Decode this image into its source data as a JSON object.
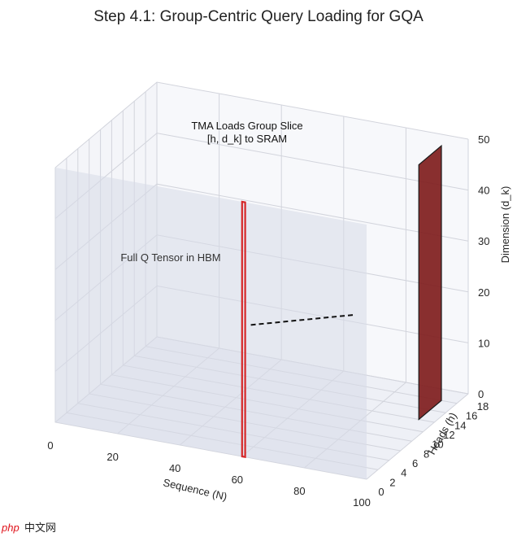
{
  "chart_data": {
    "type": "3d-surface",
    "title": "Step 4.1: Group-Centric Query Loading for GQA",
    "xlabel": "Sequence (N)",
    "ylabel": "Heads (h)",
    "zlabel": "Dimension (d_k)",
    "xlim": [
      0,
      100
    ],
    "ylim": [
      0,
      18
    ],
    "zlim": [
      0,
      50
    ],
    "xticks": [
      "0",
      "20",
      "40",
      "60",
      "80",
      "100"
    ],
    "yticks": [
      "0",
      "2",
      "4",
      "6",
      "8",
      "10",
      "12",
      "14",
      "16",
      "18"
    ],
    "zticks": [
      "0",
      "10",
      "20",
      "30",
      "40",
      "50"
    ],
    "full_tensor": {
      "x": [
        0,
        100
      ],
      "y": [
        0,
        0
      ],
      "z": [
        0,
        50
      ],
      "color": "#d7dae8",
      "label": "Full Q Tensor in HBM"
    },
    "group_slice_outline": {
      "x": [
        60,
        61
      ],
      "y": [
        0,
        0
      ],
      "z": [
        0,
        50
      ],
      "color": "#d62728"
    },
    "sram_block": {
      "x": [
        95,
        95
      ],
      "y": [
        12,
        16
      ],
      "z": [
        0,
        50
      ],
      "color": "#7f1d1d"
    },
    "arrow": {
      "from": [
        61,
        1,
        25
      ],
      "to": [
        85,
        6,
        25
      ],
      "style": "dashed"
    },
    "annotations": {
      "hbm": "Full Q Tensor in HBM",
      "tma": [
        "TMA Loads Group Slice",
        "[h, d_k] to SRAM"
      ]
    },
    "grid": true
  },
  "watermark": {
    "brand": "php",
    "text": "中文网"
  }
}
